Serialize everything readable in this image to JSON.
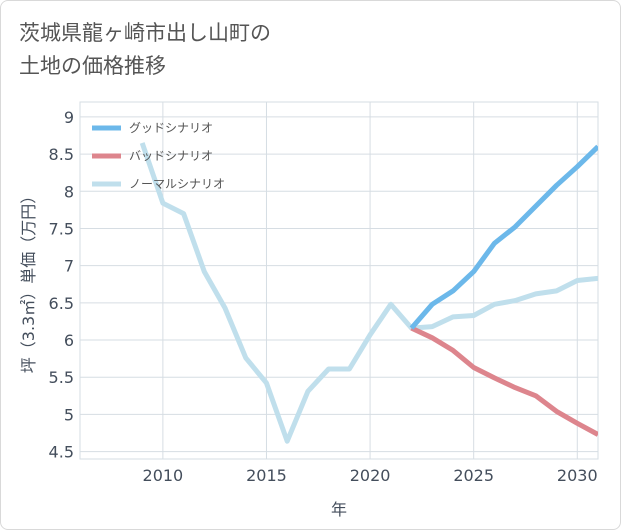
{
  "title": "茨城県龍ヶ崎市出し山町の\n土地の価格推移",
  "chart_data": {
    "type": "line",
    "title": "茨城県龍ヶ崎市出し山町の土地の価格推移",
    "xlabel": "年",
    "ylabel": "坪（3.3㎡）単価（万円）",
    "xlim": [
      2006,
      2031
    ],
    "ylim": [
      4.4,
      9.2
    ],
    "x_ticks": [
      2010,
      2015,
      2020,
      2025,
      2030
    ],
    "y_ticks": [
      4.5,
      5,
      5.5,
      6,
      6.5,
      7,
      7.5,
      8,
      8.5,
      9
    ],
    "y_tick_labels": [
      "4.5",
      "5",
      "5.5",
      "6",
      "6.5",
      "7",
      "7.5",
      "8",
      "8.5",
      "9"
    ],
    "grid": true,
    "legend_position": "top-left",
    "series": [
      {
        "name": "グッドシナリオ",
        "color": "#6cb8ea",
        "x": [
          2022,
          2023,
          2024,
          2025,
          2026,
          2027,
          2028,
          2029,
          2030,
          2031
        ],
        "y": [
          6.16,
          6.48,
          6.66,
          6.92,
          7.3,
          7.52,
          7.8,
          8.08,
          8.33,
          8.6
        ]
      },
      {
        "name": "バッドシナリオ",
        "color": "#dd858d",
        "x": [
          2022,
          2023,
          2024,
          2025,
          2026,
          2027,
          2028,
          2029,
          2030,
          2031
        ],
        "y": [
          6.16,
          6.03,
          5.86,
          5.63,
          5.49,
          5.36,
          5.25,
          5.04,
          4.88,
          4.73
        ]
      },
      {
        "name": "ノーマルシナリオ",
        "color": "#c0dfec",
        "x": [
          2009,
          2010,
          2011,
          2012,
          2013,
          2014,
          2015,
          2016,
          2017,
          2018,
          2019,
          2020,
          2021,
          2022,
          2023,
          2024,
          2025,
          2026,
          2027,
          2028,
          2029,
          2030,
          2031
        ],
        "y": [
          8.65,
          7.84,
          7.7,
          6.92,
          6.43,
          5.76,
          5.42,
          4.64,
          5.31,
          5.61,
          5.61,
          6.07,
          6.48,
          6.16,
          6.18,
          6.31,
          6.33,
          6.48,
          6.53,
          6.62,
          6.66,
          6.8,
          6.83
        ]
      }
    ]
  }
}
